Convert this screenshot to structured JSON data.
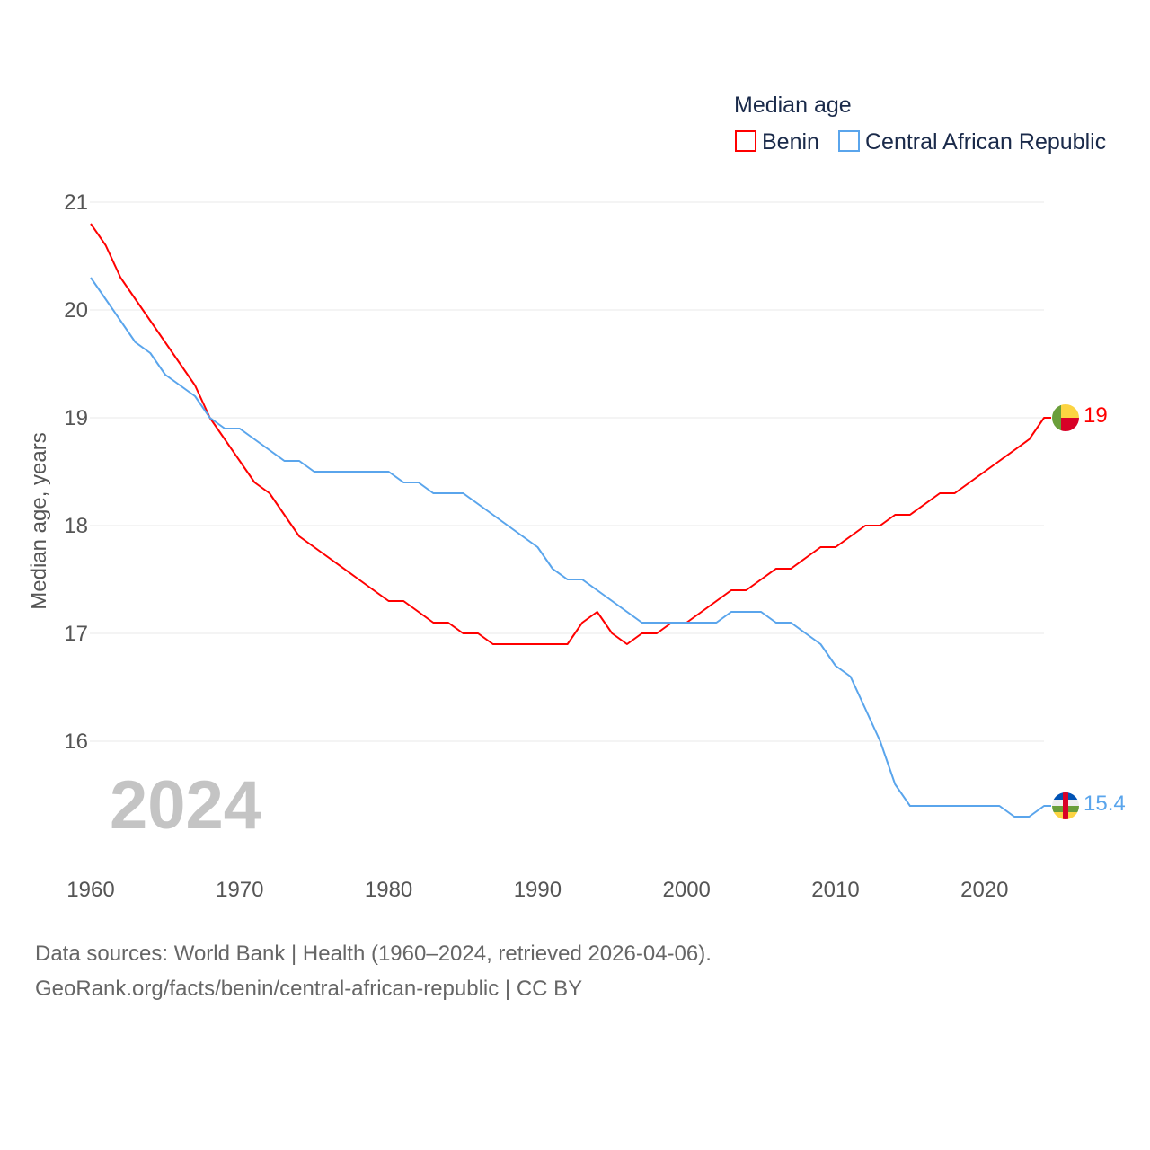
{
  "chart_data": {
    "type": "line",
    "title": "Median age",
    "ylabel": "Median age, years",
    "xlabel": "",
    "xlim": [
      1960,
      2024
    ],
    "ylim": [
      15,
      21
    ],
    "grid": true,
    "legend_placement": "top-right",
    "year_label": "2024",
    "x_ticks": [
      "1960",
      "1970",
      "1980",
      "1990",
      "2000",
      "2010",
      "2020"
    ],
    "y_ticks": [
      "16",
      "17",
      "18",
      "19",
      "20",
      "21"
    ],
    "x": [
      1960,
      1961,
      1962,
      1963,
      1964,
      1965,
      1966,
      1967,
      1968,
      1969,
      1970,
      1971,
      1972,
      1973,
      1974,
      1975,
      1976,
      1977,
      1978,
      1979,
      1980,
      1981,
      1982,
      1983,
      1984,
      1985,
      1986,
      1987,
      1988,
      1989,
      1990,
      1991,
      1992,
      1993,
      1994,
      1995,
      1996,
      1997,
      1998,
      1999,
      2000,
      2001,
      2002,
      2003,
      2004,
      2005,
      2006,
      2007,
      2008,
      2009,
      2010,
      2011,
      2012,
      2013,
      2014,
      2015,
      2016,
      2017,
      2018,
      2019,
      2020,
      2021,
      2022,
      2023,
      2024
    ],
    "series": [
      {
        "name": "Benin",
        "color": "#ff0000",
        "end_label": "19",
        "values": [
          20.8,
          20.6,
          20.3,
          20.1,
          19.9,
          19.7,
          19.5,
          19.3,
          19.0,
          18.8,
          18.6,
          18.4,
          18.3,
          18.1,
          17.9,
          17.8,
          17.7,
          17.6,
          17.5,
          17.4,
          17.3,
          17.3,
          17.2,
          17.1,
          17.1,
          17.0,
          17.0,
          16.9,
          16.9,
          16.9,
          16.9,
          16.9,
          16.9,
          17.1,
          17.2,
          17.0,
          16.9,
          17.0,
          17.0,
          17.1,
          17.1,
          17.2,
          17.3,
          17.4,
          17.4,
          17.5,
          17.6,
          17.6,
          17.7,
          17.8,
          17.8,
          17.9,
          18.0,
          18.0,
          18.1,
          18.1,
          18.2,
          18.3,
          18.3,
          18.4,
          18.5,
          18.6,
          18.7,
          18.8,
          19.0
        ]
      },
      {
        "name": "Central African Republic",
        "color": "#5aa5ec",
        "end_label": "15.4",
        "values": [
          20.3,
          20.1,
          19.9,
          19.7,
          19.6,
          19.4,
          19.3,
          19.2,
          19.0,
          18.9,
          18.9,
          18.8,
          18.7,
          18.6,
          18.6,
          18.5,
          18.5,
          18.5,
          18.5,
          18.5,
          18.5,
          18.4,
          18.4,
          18.3,
          18.3,
          18.3,
          18.2,
          18.1,
          18.0,
          17.9,
          17.8,
          17.6,
          17.5,
          17.5,
          17.4,
          17.3,
          17.2,
          17.1,
          17.1,
          17.1,
          17.1,
          17.1,
          17.1,
          17.2,
          17.2,
          17.2,
          17.1,
          17.1,
          17.0,
          16.9,
          16.7,
          16.6,
          16.3,
          16.0,
          15.6,
          15.4,
          15.4,
          15.4,
          15.4,
          15.4,
          15.4,
          15.4,
          15.3,
          15.3,
          15.4
        ]
      }
    ]
  },
  "footer": {
    "line1": "Data sources: World Bank | Health (1960–2024, retrieved 2026-04-06).",
    "line2": "GeoRank.org/facts/benin/central-african-republic | CC BY"
  }
}
